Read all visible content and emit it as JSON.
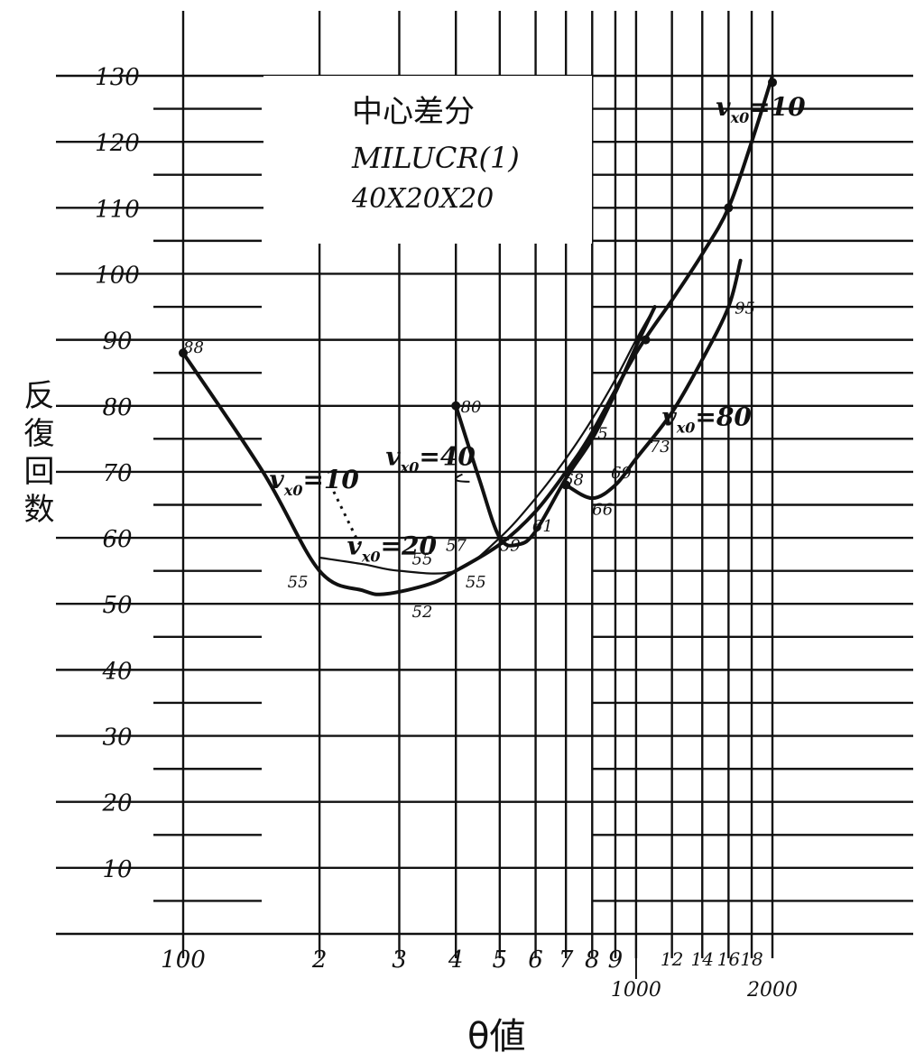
{
  "chart_data": {
    "type": "line",
    "title_lines": [
      "中心差分",
      "MILUCR(1)",
      "40X20X20"
    ],
    "xlabel": "θ値",
    "ylabel": "反復回数",
    "x_scale": "log",
    "xlim": [
      100,
      2000
    ],
    "ylim": [
      0,
      130
    ],
    "grid": true,
    "y_ticks": [
      {
        "value": 10,
        "label": "10"
      },
      {
        "value": 20,
        "label": "20"
      },
      {
        "value": 30,
        "label": "30"
      },
      {
        "value": 40,
        "label": "40"
      },
      {
        "value": 50,
        "label": "50"
      },
      {
        "value": 60,
        "label": "60"
      },
      {
        "value": 70,
        "label": "70"
      },
      {
        "value": 80,
        "label": "80"
      },
      {
        "value": 90,
        "label": "90"
      },
      {
        "value": 100,
        "label": "100"
      },
      {
        "value": 110,
        "label": "110"
      },
      {
        "value": 120,
        "label": "120"
      },
      {
        "value": 130,
        "label": "130"
      }
    ],
    "x_ticks": [
      {
        "value": 100,
        "label": "100"
      },
      {
        "value": 200,
        "label": "2"
      },
      {
        "value": 300,
        "label": "3"
      },
      {
        "value": 400,
        "label": "4"
      },
      {
        "value": 500,
        "label": "5"
      },
      {
        "value": 600,
        "label": "6"
      },
      {
        "value": 700,
        "label": "7"
      },
      {
        "value": 800,
        "label": "8"
      },
      {
        "value": 900,
        "label": "9"
      },
      {
        "value": 1000,
        "label": "1000"
      },
      {
        "value": 1200,
        "label": "12"
      },
      {
        "value": 1400,
        "label": "14"
      },
      {
        "value": 1600,
        "label": "16"
      },
      {
        "value": 1800,
        "label": "18"
      },
      {
        "value": 2000,
        "label": "2000"
      }
    ],
    "series": [
      {
        "name": "vx0=10",
        "x": [
          100,
          150,
          200,
          250,
          280,
          350,
          400,
          500,
          600,
          700,
          800,
          1000,
          1200,
          1400,
          1600,
          1800,
          2000
        ],
        "y": [
          88,
          70,
          55,
          52,
          51.5,
          53,
          55,
          59,
          64,
          70,
          76,
          88,
          96,
          103,
          110,
          120,
          130
        ]
      },
      {
        "name": "vx0=20",
        "x": [
          200,
          250,
          300,
          400,
          500,
          600,
          700,
          800,
          900,
          1000,
          1100
        ],
        "y": [
          57,
          56,
          55,
          55,
          60,
          66,
          72,
          78,
          84,
          90,
          95
        ]
      },
      {
        "name": "vx0=40",
        "x": [
          400,
          450,
          500,
          550,
          600,
          700,
          800,
          900,
          1000,
          1100
        ],
        "y": [
          80,
          69,
          60,
          59,
          61,
          69,
          75,
          82,
          89,
          95
        ]
      },
      {
        "name": "vx0=80",
        "x": [
          700,
          800,
          900,
          1000,
          1200,
          1400,
          1600,
          1700
        ],
        "y": [
          68,
          66,
          68,
          72,
          79,
          87,
          95,
          102
        ]
      }
    ],
    "series_labels": [
      {
        "series": 0,
        "text": "vx0=10",
        "x": 1500,
        "y": 124
      },
      {
        "series": 0,
        "text": "vx0=10",
        "x": 155,
        "y": 67.5
      },
      {
        "series": 1,
        "text": "vx0=20",
        "x": 230,
        "y": 57.5
      },
      {
        "series": 2,
        "text": "vx0=40",
        "x": 280,
        "y": 71
      },
      {
        "series": 3,
        "text": "vx0=80",
        "x": 1140,
        "y": 77
      }
    ],
    "point_labels": [
      {
        "text": "88",
        "x": 100,
        "y": 88
      },
      {
        "text": "55",
        "x": 170,
        "y": 52.5
      },
      {
        "text": "52",
        "x": 320,
        "y": 48
      },
      {
        "text": "55",
        "x": 320,
        "y": 56
      },
      {
        "text": "57",
        "x": 380,
        "y": 58
      },
      {
        "text": "55",
        "x": 420,
        "y": 52.5
      },
      {
        "text": "80",
        "x": 410,
        "y": 79
      },
      {
        "text": "59",
        "x": 500,
        "y": 58
      },
      {
        "text": "61",
        "x": 590,
        "y": 61
      },
      {
        "text": "68",
        "x": 690,
        "y": 68
      },
      {
        "text": "75",
        "x": 780,
        "y": 75
      },
      {
        "text": "66",
        "x": 800,
        "y": 63.5
      },
      {
        "text": "69",
        "x": 880,
        "y": 69
      },
      {
        "text": "73",
        "x": 1070,
        "y": 73
      },
      {
        "text": "95",
        "x": 1650,
        "y": 94
      }
    ],
    "marker_points": [
      {
        "x": 100,
        "y": 88
      },
      {
        "x": 400,
        "y": 80
      },
      {
        "x": 1600,
        "y": 110
      },
      {
        "x": 2000,
        "y": 129
      },
      {
        "x": 1050,
        "y": 90
      },
      {
        "x": 700,
        "y": 68
      }
    ]
  }
}
